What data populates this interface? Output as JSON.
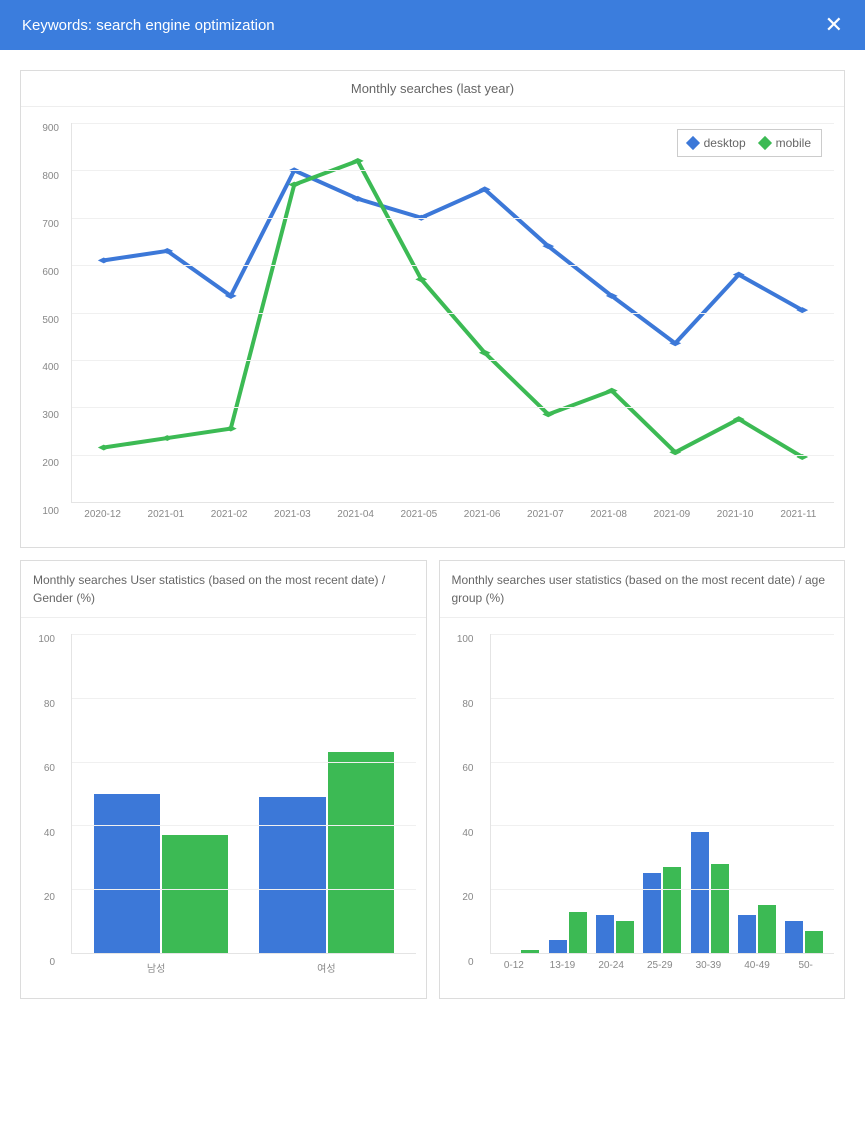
{
  "header": {
    "title": "Keywords: search engine optimization",
    "background_color": "#3b7ddd"
  },
  "main_chart": {
    "type": "line",
    "title": "Monthly searches (last year)",
    "categories": [
      "2020-12",
      "2021-01",
      "2021-02",
      "2021-03",
      "2021-04",
      "2021-05",
      "2021-06",
      "2021-07",
      "2021-08",
      "2021-09",
      "2021-10",
      "2021-11"
    ],
    "series": [
      {
        "name": "desktop",
        "color": "#3c78d8",
        "marker": "diamond",
        "values": [
          610,
          630,
          535,
          800,
          740,
          700,
          760,
          640,
          535,
          435,
          580,
          505
        ]
      },
      {
        "name": "mobile",
        "color": "#3cba54",
        "marker": "diamond",
        "values": [
          215,
          235,
          255,
          770,
          820,
          570,
          415,
          285,
          335,
          205,
          275,
          195
        ]
      }
    ],
    "ylim": [
      100,
      900
    ],
    "ytick_step": 100,
    "grid_color": "#f0f0f0",
    "axis_color": "#e4e4e4",
    "label_fontsize": 10,
    "label_color": "#888888",
    "line_width": 2,
    "marker_size": 8,
    "background_color": "#ffffff",
    "legend_border": "#cccccc"
  },
  "gender_chart": {
    "type": "bar",
    "title": "Monthly searches User statistics (based on the most recent date) / Gender (%)",
    "categories": [
      "남성",
      "여성"
    ],
    "series": [
      {
        "name": "desktop",
        "color": "#3c78d8",
        "values": [
          50,
          49
        ]
      },
      {
        "name": "mobile",
        "color": "#3cba54",
        "values": [
          37,
          63
        ]
      }
    ],
    "ylim": [
      0,
      100
    ],
    "ytick_step": 20,
    "grid_color": "#f0f0f0",
    "axis_color": "#e4e4e4",
    "label_fontsize": 10,
    "label_color": "#888888",
    "bar_width": 0.4
  },
  "age_chart": {
    "type": "bar",
    "title": "Monthly searches user statistics (based on the most recent date) / age group (%)",
    "categories": [
      "0-12",
      "13-19",
      "20-24",
      "25-29",
      "30-39",
      "40-49",
      "50-"
    ],
    "series": [
      {
        "name": "desktop",
        "color": "#3c78d8",
        "values": [
          0,
          4,
          12,
          25,
          38,
          12,
          10
        ]
      },
      {
        "name": "mobile",
        "color": "#3cba54",
        "values": [
          1,
          13,
          10,
          27,
          28,
          15,
          7
        ]
      }
    ],
    "ylim": [
      0,
      100
    ],
    "ytick_step": 20,
    "grid_color": "#f0f0f0",
    "axis_color": "#e4e4e4",
    "label_fontsize": 10,
    "label_color": "#888888",
    "bar_width": 0.38
  }
}
